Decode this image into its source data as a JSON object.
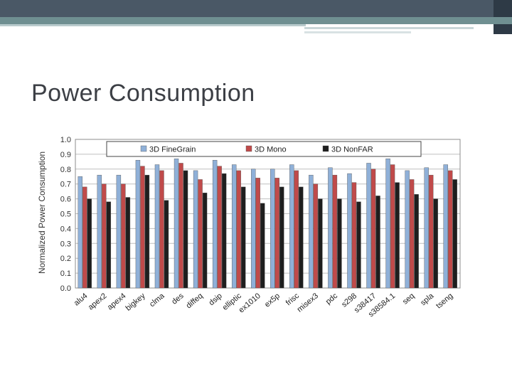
{
  "slide": {
    "title": "Power Consumption"
  },
  "colors": {
    "header": "#4a5866",
    "accent": "#6f8f91"
  },
  "chart_data": {
    "type": "bar",
    "ylabel": "Normalized Power Consumption",
    "ylim": [
      0,
      1.0
    ],
    "yticks": [
      "0.0",
      "0.1",
      "0.2",
      "0.3",
      "0.4",
      "0.5",
      "0.6",
      "0.7",
      "0.8",
      "0.9",
      "1.0"
    ],
    "grid": true,
    "legend_placement": "top",
    "categories": [
      "alu4",
      "apex2",
      "apex4",
      "bigkey",
      "clma",
      "des",
      "diffeq",
      "dsip",
      "elliptic",
      "ex1010",
      "ex5p",
      "frisc",
      "misex3",
      "pdc",
      "s298",
      "s38417",
      "s38584.1",
      "seq",
      "spla",
      "tseng"
    ],
    "series": [
      {
        "name": "3D FineGrain",
        "color": "#8fb0d8",
        "values": [
          0.75,
          0.76,
          0.76,
          0.86,
          0.83,
          0.87,
          0.79,
          0.86,
          0.83,
          0.8,
          0.8,
          0.83,
          0.76,
          0.81,
          0.77,
          0.84,
          0.87,
          0.79,
          0.81,
          0.83
        ]
      },
      {
        "name": "3D Mono",
        "color": "#c04a4a",
        "values": [
          0.68,
          0.7,
          0.7,
          0.82,
          0.79,
          0.84,
          0.73,
          0.82,
          0.79,
          0.74,
          0.74,
          0.79,
          0.7,
          0.76,
          0.71,
          0.8,
          0.83,
          0.73,
          0.76,
          0.79
        ]
      },
      {
        "name": "3D NonFAR",
        "color": "#1e1e1e",
        "values": [
          0.6,
          0.58,
          0.61,
          0.76,
          0.59,
          0.79,
          0.64,
          0.77,
          0.68,
          0.57,
          0.68,
          0.68,
          0.6,
          0.6,
          0.58,
          0.62,
          0.71,
          0.63,
          0.6,
          0.73
        ]
      }
    ]
  }
}
